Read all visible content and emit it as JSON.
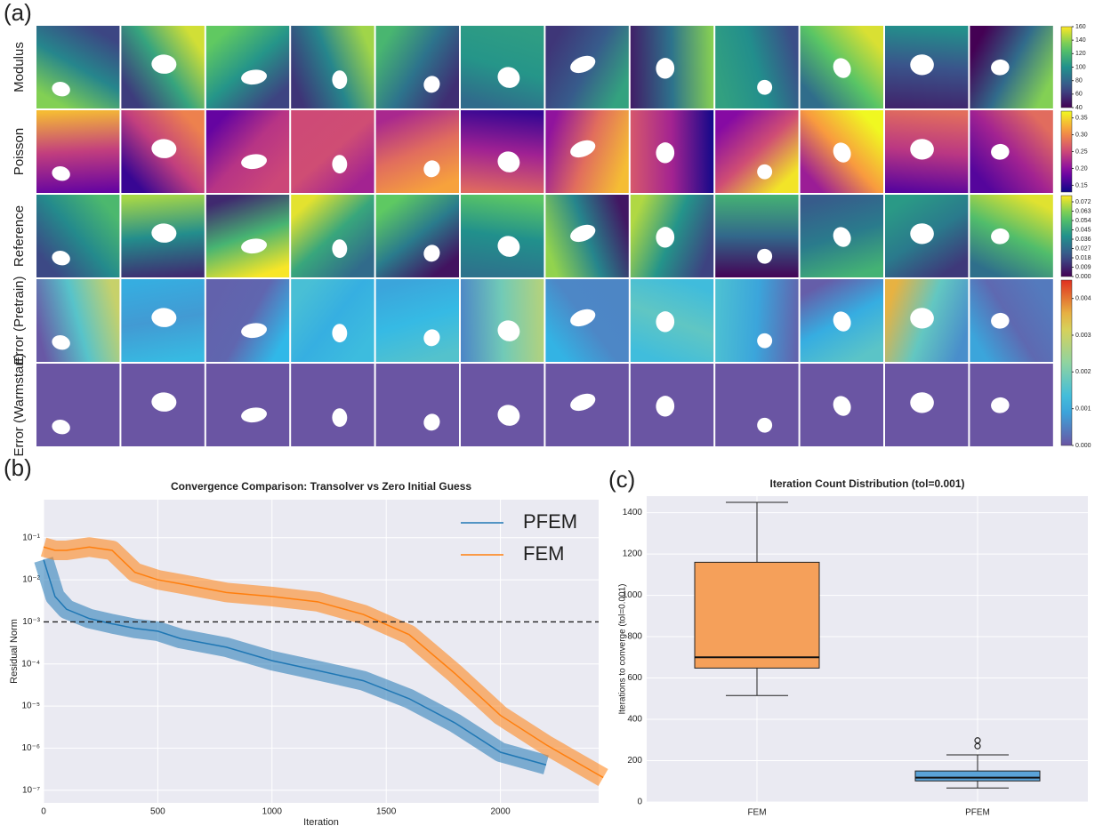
{
  "chart_data": [
    {
      "type": "image-grid",
      "panel": "(a)",
      "row_labels": [
        "Modulus",
        "Poisson",
        "Reference",
        "Error (Pretrain)",
        "Error (Warmstart)"
      ],
      "colorbars": [
        {
          "lim": [
            40,
            160
          ],
          "ticks": [
            40,
            60,
            80,
            100,
            120,
            140,
            160
          ]
        },
        {
          "lim": [
            0.13,
            0.37
          ],
          "ticks": [
            0.15,
            {
              "value": 0.2,
              "label": "0.20"
            },
            0.25,
            {
              "value": 0.3,
              "label": "0.30"
            },
            0.35
          ]
        },
        {
          "lim": [
            0,
            0.078
          ],
          "ticks": [
            {
              "value": 0,
              "label": "0.000"
            },
            0.009,
            0.018,
            0.027,
            0.036,
            0.045,
            0.054,
            0.063,
            0.072
          ]
        },
        {
          "lim": [
            0,
            0.0045
          ],
          "ticks": [
            {
              "value": 0,
              "label": "0.000"
            },
            0.001,
            0.002,
            0.003,
            0.004
          ]
        }
      ]
    },
    {
      "type": "line",
      "panel": "(b)",
      "title": "Convergence Comparison: Transolver vs Zero Initial Guess",
      "x_label": "Iteration",
      "y_label": "Residual Norm",
      "log_y": true,
      "grid": true,
      "legend": "upper right",
      "x": [
        0,
        50,
        100,
        200,
        300,
        400,
        500,
        600,
        800,
        1000,
        1200,
        1400,
        1600,
        1800,
        2000,
        2200,
        2450
      ],
      "series": [
        {
          "name": "PFEM",
          "color": "#1f77b4",
          "values": [
            0.03,
            0.004,
            0.002,
            0.0012,
            0.0009,
            0.0007,
            0.0006,
            0.0004,
            0.00025,
            0.00012,
            7e-05,
            4e-05,
            1.5e-05,
            4e-06,
            8e-07,
            4e-07,
            null
          ]
        },
        {
          "name": "FEM",
          "color": "#ff7f0e",
          "values": [
            0.06,
            0.05,
            0.05,
            0.06,
            0.05,
            0.015,
            0.01,
            0.008,
            0.005,
            0.004,
            0.003,
            0.0015,
            0.0005,
            6e-05,
            6e-06,
            1.2e-06,
            2e-07
          ]
        }
      ],
      "threshold": 0.001,
      "xlim": [
        0,
        2430
      ],
      "ylim": [
        5e-08,
        0.8
      ],
      "xticks": [
        0,
        500,
        1000,
        1500,
        2000
      ],
      "yticks": [
        {
          "value": 1e-07,
          "label": "10⁻⁷"
        },
        {
          "value": 1e-06,
          "label": "10⁻⁶"
        },
        {
          "value": 1e-05,
          "label": "10⁻⁵"
        },
        {
          "value": 0.0001,
          "label": "10⁻⁴"
        },
        {
          "value": 0.001,
          "label": "10⁻³"
        },
        {
          "value": 0.01,
          "label": "10⁻²"
        },
        {
          "value": 0.1,
          "label": "10⁻¹"
        }
      ]
    },
    {
      "type": "box",
      "panel": "(c)",
      "title": "Iteration Count Distribution (tol=0.001)",
      "y_label": "Iterations to converge (tol=0.001)",
      "grid": true,
      "categories": [
        "FEM",
        "PFEM"
      ],
      "colors": [
        "#f5a05a",
        "#5aa3d8"
      ],
      "boxes": [
        {
          "whislo": 515,
          "q1": 648,
          "med": 700,
          "q3": 1160,
          "whishi": 1450,
          "fliers": []
        },
        {
          "whislo": 68,
          "q1": 102,
          "med": 118,
          "q3": 150,
          "whishi": 228,
          "fliers": [
            270,
            298
          ]
        }
      ],
      "ylim": [
        0,
        1480
      ],
      "yticks": [
        0,
        200,
        400,
        600,
        800,
        1000,
        1200,
        1400
      ]
    }
  ]
}
